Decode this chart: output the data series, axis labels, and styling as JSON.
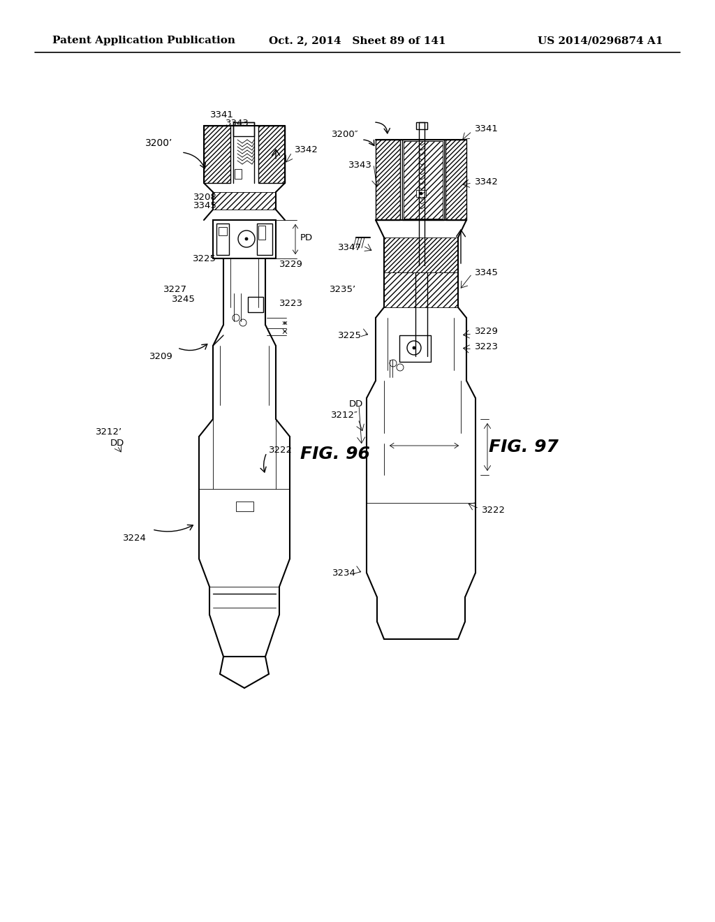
{
  "title_left": "Patent Application Publication",
  "title_center": "Oct. 2, 2014   Sheet 89 of 141",
  "title_right": "US 2014/0296874 A1",
  "fig96_label": "FIG. 96",
  "fig97_label": "FIG. 97",
  "background_color": "#ffffff",
  "line_color": "#000000",
  "header_fontsize": 11,
  "fig_label_fontsize": 18,
  "ref_fontsize": 9.5
}
